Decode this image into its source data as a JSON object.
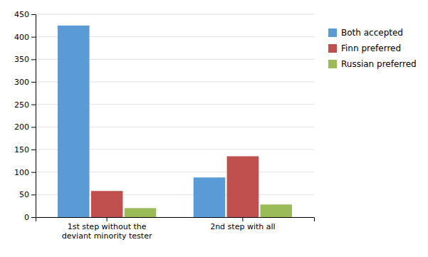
{
  "chart_data": {
    "type": "bar",
    "categories": [
      "1st step without the\ndeviant minority tester",
      "2nd step with all"
    ],
    "series": [
      {
        "name": "Both accepted",
        "color": "#5B9BD5",
        "values": [
          425,
          88
        ]
      },
      {
        "name": "Finn preferred",
        "color": "#C0504D",
        "values": [
          58,
          135
        ]
      },
      {
        "name": "Russian preferred",
        "color": "#9BBB59",
        "values": [
          20,
          28
        ]
      }
    ],
    "ylim": [
      0,
      450
    ],
    "yticks": [
      0,
      50,
      100,
      150,
      200,
      250,
      300,
      350,
      400,
      450
    ],
    "grid": true,
    "legend": "right"
  }
}
